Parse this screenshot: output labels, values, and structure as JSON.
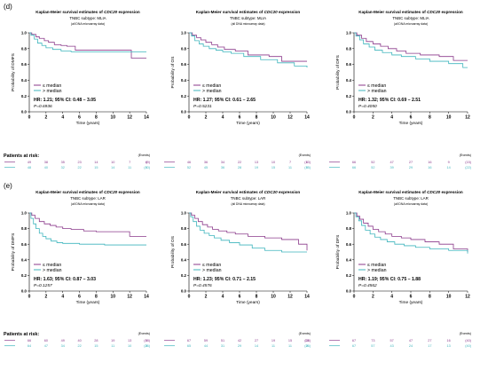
{
  "figure": {
    "panel_labels": [
      "(d)",
      "(e)"
    ],
    "title_main": "Kaplan-Meier survival estimates of ",
    "gene": "CDC20",
    "title_suffix": " expression",
    "data_note": "(all DNA microarray data)",
    "xlabel": "Time (years)",
    "at_risk_label": "Patients at risk:",
    "events_label": "(Events)",
    "legend": [
      "≤ median",
      "> median"
    ],
    "colors": {
      "low": "#8B3A8B",
      "high": "#3FB5BD"
    }
  },
  "chart_data": [
    {
      "type": "line",
      "panel": "(d)",
      "subtype": "TNBC subtype: MLIA",
      "endpoint": "DMFS",
      "ylabel": "Probability of DMFS",
      "xlim": [
        0,
        14
      ],
      "ylim": [
        0,
        1
      ],
      "xticks": [
        0,
        2,
        4,
        6,
        8,
        10,
        12,
        14
      ],
      "yticks": [
        0,
        0.2,
        0.4,
        0.6,
        0.8,
        1.0
      ],
      "hr": "HR: 1.21; 95% CI: 0.48 – 3.05",
      "p": "P=0.6936",
      "series": [
        {
          "name": "≤ median",
          "x": [
            0,
            0.3,
            0.8,
            1.2,
            1.8,
            2.3,
            3.0,
            3.8,
            4.5,
            5.5,
            12.2,
            14
          ],
          "y": [
            1,
            0.98,
            0.95,
            0.93,
            0.9,
            0.88,
            0.85,
            0.84,
            0.83,
            0.78,
            0.68,
            0.68
          ]
        },
        {
          "name": "> median",
          "x": [
            0,
            0.2,
            0.6,
            1.0,
            1.5,
            2.0,
            2.8,
            3.8,
            5.0,
            14
          ],
          "y": [
            1,
            0.97,
            0.92,
            0.87,
            0.84,
            0.81,
            0.79,
            0.77,
            0.76,
            0.76
          ]
        }
      ],
      "at_risk": [
        [
          "49",
          "38",
          "35",
          "23",
          "14",
          "10",
          "7",
          "6",
          "(9)"
        ],
        [
          "48",
          "40",
          "32",
          "22",
          "15",
          "14",
          "11",
          "9",
          "(10)"
        ]
      ]
    },
    {
      "type": "line",
      "panel": "(d)",
      "subtype": "TNBC subtype: MLIA",
      "endpoint": "OS",
      "ylabel": "Probability of OS",
      "xlim": [
        0,
        14
      ],
      "ylim": [
        0,
        1
      ],
      "xticks": [
        0,
        2,
        4,
        6,
        8,
        10,
        12,
        14
      ],
      "yticks": [
        0,
        0.2,
        0.4,
        0.6,
        0.8,
        1.0
      ],
      "hr": "HR: 1.27; 95% CI: 0.61 – 2.65",
      "p": "P=0.5231",
      "series": [
        {
          "name": "≤ median",
          "x": [
            0,
            0.4,
            0.9,
            1.4,
            2.0,
            2.7,
            3.4,
            4.2,
            5.5,
            7.0,
            9.5,
            11.0,
            14
          ],
          "y": [
            1,
            0.97,
            0.94,
            0.91,
            0.88,
            0.85,
            0.82,
            0.79,
            0.77,
            0.72,
            0.7,
            0.64,
            0.64
          ]
        },
        {
          "name": "> median",
          "x": [
            0,
            0.3,
            0.7,
            1.2,
            1.7,
            2.4,
            3.2,
            4.0,
            5.0,
            6.5,
            8.5,
            10.5,
            12.5,
            14
          ],
          "y": [
            1,
            0.96,
            0.9,
            0.86,
            0.83,
            0.8,
            0.78,
            0.76,
            0.74,
            0.7,
            0.66,
            0.62,
            0.58,
            0.56
          ]
        }
      ],
      "at_risk": [
        [
          "46",
          "36",
          "34",
          "22",
          "13",
          "10",
          "7",
          "6",
          "(13)"
        ],
        [
          "52",
          "45",
          "36",
          "28",
          "19",
          "15",
          "11",
          "9",
          "(15)"
        ]
      ]
    },
    {
      "type": "line",
      "panel": "(d)",
      "subtype": "TNBC subtype: MLIA",
      "endpoint": "DFS",
      "ylabel": "Probability of DFS",
      "xlim": [
        0,
        12
      ],
      "ylim": [
        0,
        1
      ],
      "xticks": [
        0,
        2,
        4,
        6,
        8,
        10,
        12
      ],
      "yticks": [
        0,
        0.2,
        0.4,
        0.6,
        0.8,
        1.0
      ],
      "hr": "HR: 1.32; 95% CI: 0.69 – 2.51",
      "p": "P=0.4050",
      "series": [
        {
          "name": "≤ median",
          "x": [
            0,
            0.3,
            0.8,
            1.3,
            2.0,
            2.8,
            3.6,
            4.5,
            5.5,
            7.0,
            9.0,
            10.5,
            12
          ],
          "y": [
            1,
            0.97,
            0.93,
            0.89,
            0.86,
            0.83,
            0.8,
            0.77,
            0.74,
            0.72,
            0.7,
            0.65,
            0.65
          ]
        },
        {
          "name": "> median",
          "x": [
            0,
            0.2,
            0.6,
            1.0,
            1.6,
            2.2,
            3.0,
            4.0,
            5.0,
            6.5,
            8.0,
            10.0,
            11.5,
            12
          ],
          "y": [
            1,
            0.96,
            0.91,
            0.86,
            0.82,
            0.78,
            0.75,
            0.72,
            0.7,
            0.67,
            0.64,
            0.61,
            0.56,
            0.56
          ]
        }
      ],
      "at_risk": [
        [
          "66",
          "52",
          "47",
          "27",
          "16",
          "9",
          "(15)"
        ],
        [
          "66",
          "52",
          "39",
          "29",
          "16",
          "14",
          "(22)"
        ]
      ]
    },
    {
      "type": "line",
      "panel": "(e)",
      "subtype": "TNBC subtype: LAR",
      "endpoint": "DMFS",
      "ylabel": "Probability of DMFS",
      "xlim": [
        0,
        14
      ],
      "ylim": [
        0,
        1
      ],
      "xticks": [
        0,
        2,
        4,
        6,
        8,
        10,
        12,
        14
      ],
      "yticks": [
        0,
        0.2,
        0.4,
        0.6,
        0.8,
        1.0
      ],
      "hr": "HR: 1.63; 95% CI: 0.87 – 3.03",
      "p": "P=0.1257",
      "series": [
        {
          "name": "≤ median",
          "x": [
            0,
            0.3,
            0.7,
            1.2,
            1.8,
            2.5,
            3.2,
            4.0,
            5.0,
            6.5,
            8.0,
            11.0,
            12.0,
            14
          ],
          "y": [
            1,
            0.97,
            0.93,
            0.89,
            0.86,
            0.84,
            0.82,
            0.8,
            0.79,
            0.77,
            0.76,
            0.76,
            0.7,
            0.7
          ]
        },
        {
          "name": "> median",
          "x": [
            0,
            0.2,
            0.5,
            0.8,
            1.2,
            1.6,
            2.0,
            2.6,
            3.3,
            4.0,
            6.0,
            9.0,
            14
          ],
          "y": [
            1,
            0.93,
            0.86,
            0.8,
            0.74,
            0.7,
            0.67,
            0.64,
            0.62,
            0.61,
            0.6,
            0.59,
            0.59
          ]
        }
      ],
      "at_risk": [
        [
          "66",
          "60",
          "49",
          "40",
          "28",
          "19",
          "13",
          "9",
          "(18)"
        ],
        [
          "64",
          "47",
          "34",
          "22",
          "15",
          "11",
          "10",
          "8",
          "(26)"
        ]
      ]
    },
    {
      "type": "line",
      "panel": "(e)",
      "subtype": "TNBC subtype: LAR",
      "endpoint": "OS",
      "ylabel": "Probability of OS",
      "xlim": [
        0,
        14
      ],
      "ylim": [
        0,
        1
      ],
      "xticks": [
        0,
        2,
        4,
        6,
        8,
        10,
        12,
        14
      ],
      "yticks": [
        0,
        0.2,
        0.4,
        0.6,
        0.8,
        1.0
      ],
      "hr": "HR: 1.23; 95% CI: 0.71 – 2.15",
      "p": "P=0.4576",
      "series": [
        {
          "name": "≤ median",
          "x": [
            0,
            0.3,
            0.7,
            1.1,
            1.6,
            2.2,
            2.8,
            3.5,
            4.5,
            5.5,
            7.0,
            9.0,
            11.0,
            13.0,
            14
          ],
          "y": [
            1,
            0.97,
            0.93,
            0.89,
            0.85,
            0.82,
            0.79,
            0.77,
            0.75,
            0.73,
            0.7,
            0.68,
            0.66,
            0.6,
            0.52
          ]
        },
        {
          "name": "> median",
          "x": [
            0,
            0.2,
            0.5,
            0.9,
            1.3,
            1.8,
            2.4,
            3.0,
            3.8,
            4.8,
            6.0,
            7.5,
            9.0,
            11.0,
            14
          ],
          "y": [
            1,
            0.95,
            0.89,
            0.83,
            0.78,
            0.74,
            0.71,
            0.68,
            0.65,
            0.62,
            0.59,
            0.55,
            0.52,
            0.5,
            0.5
          ]
        }
      ],
      "at_risk": [
        [
          "67",
          "59",
          "51",
          "42",
          "27",
          "19",
          "15",
          "10",
          "(28)"
        ],
        [
          "65",
          "44",
          "31",
          "29",
          "14",
          "11",
          "11",
          "8",
          "(26)"
        ]
      ]
    },
    {
      "type": "line",
      "panel": "(e)",
      "subtype": "TNBC subtype: LAR",
      "endpoint": "DFS",
      "ylabel": "Probability of DFS",
      "xlim": [
        0,
        12
      ],
      "ylim": [
        0,
        1
      ],
      "xticks": [
        0,
        2,
        4,
        6,
        8,
        10,
        12
      ],
      "yticks": [
        0,
        0.2,
        0.4,
        0.6,
        0.8,
        1.0
      ],
      "hr": "HR: 1.19; 95% CI: 0.75 – 1.88",
      "p": "P=0.4562",
      "series": [
        {
          "name": "≤ median",
          "x": [
            0,
            0.3,
            0.6,
            1.0,
            1.5,
            2.0,
            2.6,
            3.3,
            4.0,
            5.0,
            6.0,
            7.5,
            9.0,
            10.5,
            12
          ],
          "y": [
            1,
            0.96,
            0.92,
            0.87,
            0.83,
            0.79,
            0.76,
            0.73,
            0.7,
            0.68,
            0.66,
            0.63,
            0.6,
            0.54,
            0.5
          ]
        },
        {
          "name": "> median",
          "x": [
            0,
            0.2,
            0.5,
            0.8,
            1.2,
            1.7,
            2.2,
            2.8,
            3.5,
            4.3,
            5.3,
            6.5,
            8.0,
            10.0,
            12
          ],
          "y": [
            1,
            0.95,
            0.9,
            0.84,
            0.78,
            0.73,
            0.69,
            0.66,
            0.63,
            0.6,
            0.58,
            0.56,
            0.54,
            0.52,
            0.48
          ]
        }
      ],
      "at_risk": [
        [
          "67",
          "73",
          "57",
          "47",
          "27",
          "16",
          "(40)"
        ],
        [
          "67",
          "57",
          "43",
          "24",
          "17",
          "13",
          "(40)"
        ]
      ]
    }
  ]
}
